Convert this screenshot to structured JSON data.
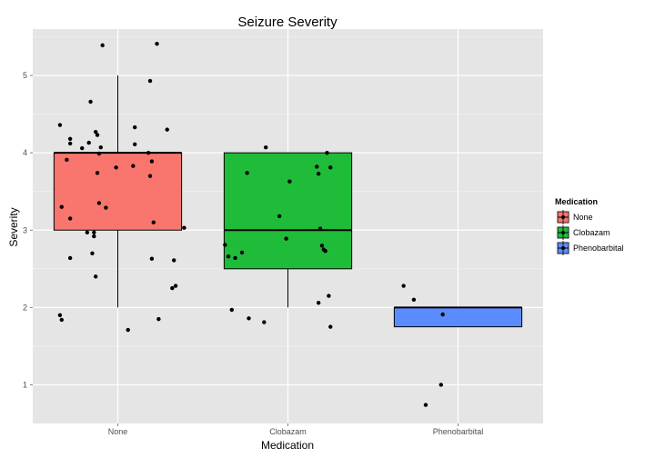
{
  "chart_data": {
    "type": "boxplot",
    "title": "Seizure Severity",
    "xlabel": "Medication",
    "ylabel": "Severity",
    "ylim": [
      0.5,
      5.6
    ],
    "yticks": [
      1,
      2,
      3,
      4,
      5
    ],
    "categories": [
      "None",
      "Clobazam",
      "Phenobarbital"
    ],
    "grid": true,
    "background": "#e5e5e5",
    "legend": {
      "title": "Medication",
      "position": "right",
      "entries": [
        {
          "name": "None",
          "color": "#f8766d"
        },
        {
          "name": "Clobazam",
          "color": "#1fbc3a"
        },
        {
          "name": "Phenobarbital",
          "color": "#5b8cff"
        }
      ]
    },
    "boxes": [
      {
        "category": "None",
        "q1": 3.0,
        "median": 4.0,
        "q3": 4.0,
        "whisker_low": 2.0,
        "whisker_high": 5.0,
        "color": "#f8766d"
      },
      {
        "category": "Clobazam",
        "q1": 2.5,
        "median": 3.0,
        "q3": 4.0,
        "whisker_low": 2.0,
        "whisker_high": 4.0,
        "color": "#1fbc3a"
      },
      {
        "category": "Phenobarbital",
        "q1": 1.75,
        "median": 2.0,
        "q3": 2.0,
        "whisker_low": 1.75,
        "whisker_high": 2.0,
        "color": "#5b8cff"
      }
    ],
    "points": [
      {
        "x": 0.66,
        "y": 1.9
      },
      {
        "x": 0.67,
        "y": 1.84
      },
      {
        "x": 0.67,
        "y": 3.3
      },
      {
        "x": 0.7,
        "y": 3.91
      },
      {
        "x": 0.72,
        "y": 2.64
      },
      {
        "x": 0.72,
        "y": 3.15
      },
      {
        "x": 0.72,
        "y": 4.12
      },
      {
        "x": 0.72,
        "y": 4.18
      },
      {
        "x": 0.66,
        "y": 4.36
      },
      {
        "x": 0.82,
        "y": 2.97
      },
      {
        "x": 0.79,
        "y": 4.06
      },
      {
        "x": 0.83,
        "y": 4.13
      },
      {
        "x": 0.84,
        "y": 4.66
      },
      {
        "x": 0.85,
        "y": 2.7
      },
      {
        "x": 0.86,
        "y": 2.92
      },
      {
        "x": 0.86,
        "y": 2.97
      },
      {
        "x": 0.87,
        "y": 2.4
      },
      {
        "x": 0.87,
        "y": 4.27
      },
      {
        "x": 0.88,
        "y": 4.23
      },
      {
        "x": 0.88,
        "y": 3.74
      },
      {
        "x": 0.89,
        "y": 3.35
      },
      {
        "x": 0.89,
        "y": 3.99
      },
      {
        "x": 0.9,
        "y": 4.07
      },
      {
        "x": 0.91,
        "y": 5.39
      },
      {
        "x": 0.93,
        "y": 3.29
      },
      {
        "x": 0.99,
        "y": 3.81
      },
      {
        "x": 1.06,
        "y": 1.71
      },
      {
        "x": 1.09,
        "y": 3.83
      },
      {
        "x": 1.1,
        "y": 4.33
      },
      {
        "x": 1.1,
        "y": 4.11
      },
      {
        "x": 1.18,
        "y": 4.0
      },
      {
        "x": 1.19,
        "y": 4.93
      },
      {
        "x": 1.19,
        "y": 3.7
      },
      {
        "x": 1.2,
        "y": 2.63
      },
      {
        "x": 1.2,
        "y": 3.89
      },
      {
        "x": 1.21,
        "y": 3.1
      },
      {
        "x": 1.23,
        "y": 5.41
      },
      {
        "x": 1.24,
        "y": 1.85
      },
      {
        "x": 1.29,
        "y": 4.3
      },
      {
        "x": 1.32,
        "y": 2.25
      },
      {
        "x": 1.33,
        "y": 2.61
      },
      {
        "x": 1.34,
        "y": 2.28
      },
      {
        "x": 1.39,
        "y": 3.03
      },
      {
        "x": 1.63,
        "y": 2.81
      },
      {
        "x": 1.65,
        "y": 2.66
      },
      {
        "x": 1.67,
        "y": 1.97
      },
      {
        "x": 1.69,
        "y": 2.64
      },
      {
        "x": 1.73,
        "y": 2.71
      },
      {
        "x": 1.76,
        "y": 3.74
      },
      {
        "x": 1.77,
        "y": 1.86
      },
      {
        "x": 1.86,
        "y": 1.81
      },
      {
        "x": 1.87,
        "y": 4.07
      },
      {
        "x": 1.95,
        "y": 3.18
      },
      {
        "x": 1.99,
        "y": 2.89
      },
      {
        "x": 2.01,
        "y": 3.63
      },
      {
        "x": 2.17,
        "y": 3.82
      },
      {
        "x": 2.18,
        "y": 2.06
      },
      {
        "x": 2.18,
        "y": 3.73
      },
      {
        "x": 2.19,
        "y": 3.02
      },
      {
        "x": 2.2,
        "y": 2.8
      },
      {
        "x": 2.21,
        "y": 2.75
      },
      {
        "x": 2.22,
        "y": 2.73
      },
      {
        "x": 2.23,
        "y": 4.0
      },
      {
        "x": 2.24,
        "y": 2.15
      },
      {
        "x": 2.25,
        "y": 3.81
      },
      {
        "x": 2.25,
        "y": 1.75
      },
      {
        "x": 2.68,
        "y": 2.28
      },
      {
        "x": 2.74,
        "y": 2.1
      },
      {
        "x": 2.9,
        "y": 1.0
      },
      {
        "x": 2.91,
        "y": 1.91
      },
      {
        "x": 2.81,
        "y": 0.74
      }
    ]
  }
}
